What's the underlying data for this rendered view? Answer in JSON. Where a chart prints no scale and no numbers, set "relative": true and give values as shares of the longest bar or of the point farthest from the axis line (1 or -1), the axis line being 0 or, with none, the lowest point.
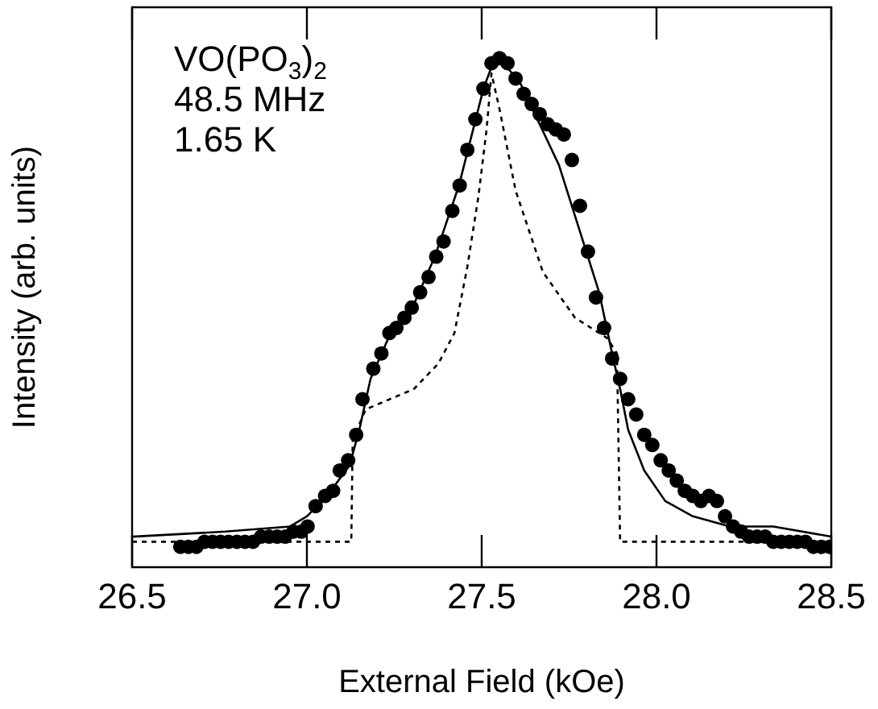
{
  "chart_data": {
    "type": "scatter",
    "xlabel": "External Field (kOe)",
    "ylabel": "Intensity (arb. units)",
    "relative": true,
    "annotations": [
      "VO(PO$_{3}$)$_{2}$",
      "48.5 MHz",
      "1.65 K"
    ],
    "xlim": [
      26.5,
      28.5
    ],
    "xticks": [
      26.5,
      {
        "value": 27,
        "label": "27.0"
      },
      27.5,
      {
        "value": 28,
        "label": "28.0"
      },
      28.5
    ],
    "grid": false,
    "legend": false,
    "series": [
      {
        "type": "scatter",
        "color": "#000000",
        "marker": "circle",
        "x": [
          26.638,
          26.661,
          26.684,
          26.707,
          26.73,
          26.753,
          26.776,
          26.8,
          26.823,
          26.846,
          26.869,
          26.892,
          26.915,
          26.938,
          26.961,
          26.984,
          27.002,
          27.025,
          27.052,
          27.075,
          27.094,
          27.118,
          27.141,
          27.159,
          27.19,
          27.213,
          27.236,
          27.256,
          27.279,
          27.3,
          27.324,
          27.348,
          27.37,
          27.391,
          27.416,
          27.437,
          27.459,
          27.482,
          27.505,
          27.528,
          27.551,
          27.574,
          27.597,
          27.62,
          27.643,
          27.666,
          27.689,
          27.712,
          27.735,
          27.758,
          27.781,
          27.804,
          27.827,
          27.85,
          27.873,
          27.896,
          27.919,
          27.942,
          27.965,
          27.988,
          28.012,
          28.035,
          28.058,
          28.081,
          28.104,
          28.127,
          28.15,
          28.173,
          28.196,
          28.219,
          28.242,
          28.265,
          28.288,
          28.311,
          28.334,
          28.357,
          28.38,
          28.403,
          28.426,
          28.449,
          28.472,
          28.495
        ],
        "values": [
          0.04,
          0.04,
          0.04,
          0.05,
          0.05,
          0.05,
          0.05,
          0.05,
          0.05,
          0.05,
          0.06,
          0.06,
          0.06,
          0.06,
          0.07,
          0.07,
          0.08,
          0.12,
          0.14,
          0.15,
          0.19,
          0.21,
          0.26,
          0.33,
          0.39,
          0.42,
          0.46,
          0.47,
          0.49,
          0.51,
          0.54,
          0.57,
          0.61,
          0.64,
          0.7,
          0.75,
          0.82,
          0.88,
          0.94,
          0.99,
          1.0,
          0.99,
          0.96,
          0.93,
          0.91,
          0.89,
          0.87,
          0.86,
          0.85,
          0.8,
          0.71,
          0.62,
          0.53,
          0.47,
          0.41,
          0.37,
          0.33,
          0.3,
          0.26,
          0.24,
          0.21,
          0.19,
          0.17,
          0.15,
          0.14,
          0.13,
          0.14,
          0.13,
          0.1,
          0.08,
          0.07,
          0.06,
          0.06,
          0.06,
          0.05,
          0.05,
          0.05,
          0.05,
          0.05,
          0.04,
          0.04,
          0.04
        ]
      },
      {
        "type": "line",
        "color": "#000000",
        "line_style": "solid",
        "x": [
          26.5,
          26.767,
          26.952,
          27.0,
          27.058,
          27.122,
          27.15,
          27.182,
          27.233,
          27.302,
          27.366,
          27.435,
          27.505,
          27.532,
          27.551,
          27.611,
          27.721,
          27.79,
          27.836,
          27.873,
          27.896,
          27.919,
          27.965,
          28.025,
          28.104,
          28.21,
          28.334,
          28.5
        ],
        "values": [
          0.06,
          0.07,
          0.08,
          0.1,
          0.14,
          0.2,
          0.27,
          0.37,
          0.45,
          0.51,
          0.61,
          0.75,
          0.94,
          0.99,
          1.0,
          0.95,
          0.79,
          0.64,
          0.54,
          0.42,
          0.35,
          0.27,
          0.19,
          0.13,
          0.1,
          0.08,
          0.08,
          0.06
        ]
      },
      {
        "type": "line",
        "color": "#000000",
        "line_style": "dashed",
        "x": [
          26.5,
          27.127,
          27.131,
          27.168,
          27.306,
          27.376,
          27.422,
          27.459,
          27.491,
          27.514,
          27.528,
          27.551,
          27.597,
          27.675,
          27.767,
          27.859,
          27.887,
          27.896,
          28.5
        ],
        "values": [
          0.05,
          0.05,
          0.25,
          0.31,
          0.35,
          0.4,
          0.46,
          0.59,
          0.73,
          0.86,
          0.97,
          0.9,
          0.74,
          0.58,
          0.49,
          0.45,
          0.42,
          0.05,
          0.05
        ]
      }
    ]
  }
}
